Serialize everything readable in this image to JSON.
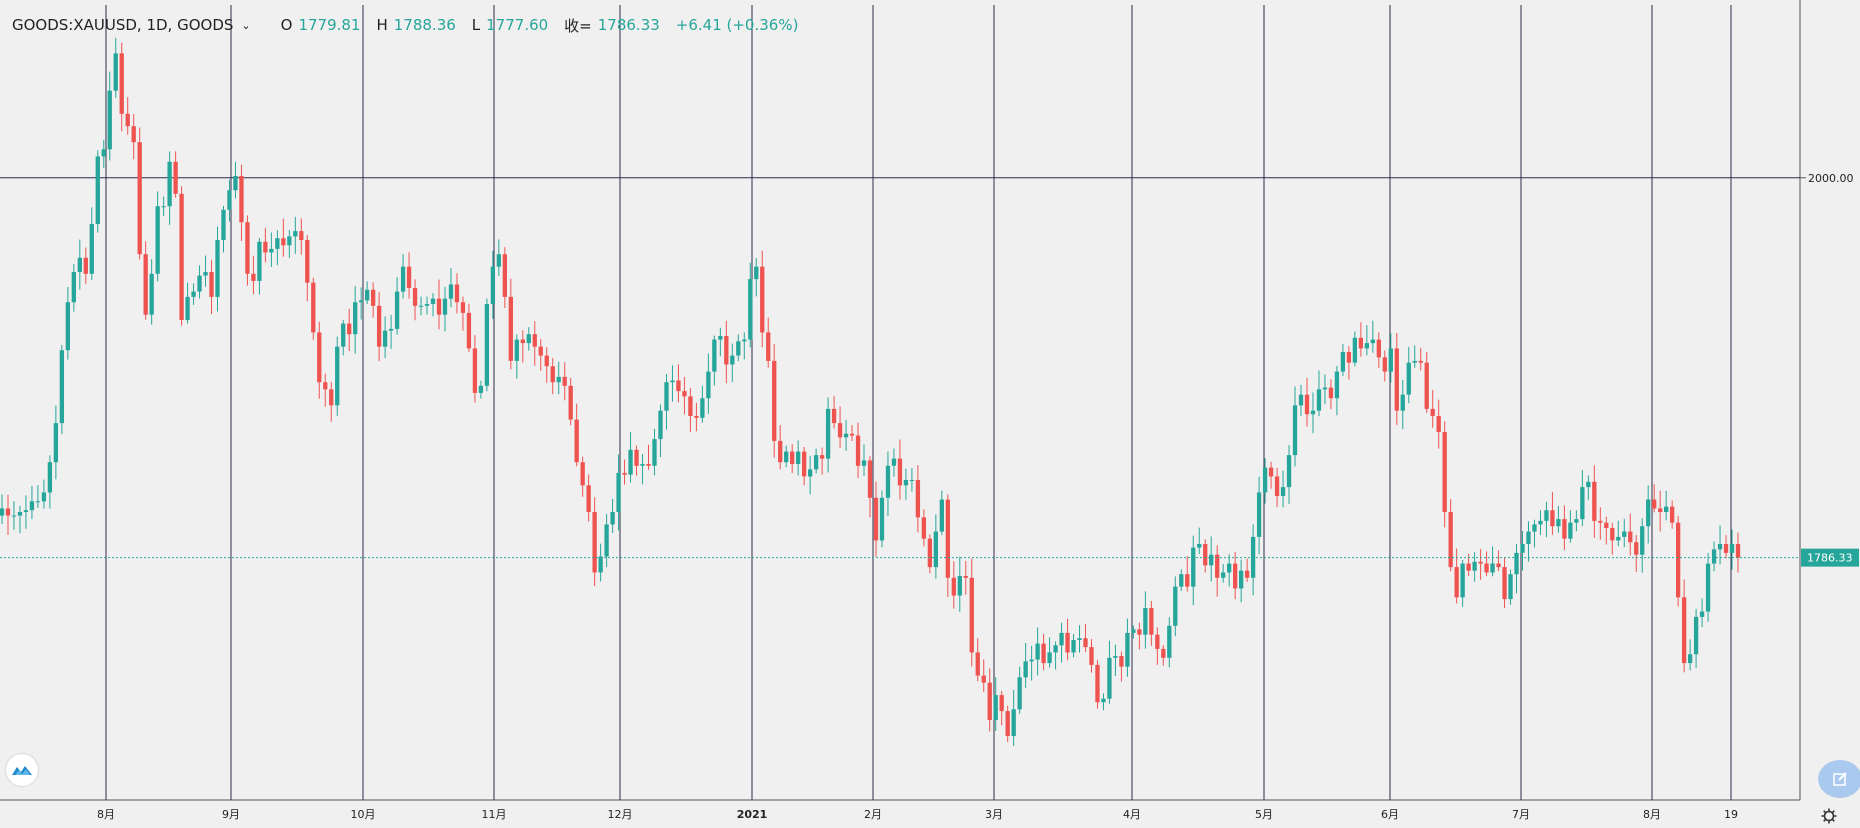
{
  "legend": {
    "symbol": "GOODS:XAUUSD, 1D, GOODS",
    "open_label": "O",
    "open": "1779.81",
    "high_label": "H",
    "high": "1788.36",
    "low_label": "L",
    "low": "1777.60",
    "close_label": "收=",
    "close": "1786.33",
    "change": "+6.41 (+0.36%)"
  },
  "price_axis": {
    "labels": [
      "2000.00"
    ],
    "last_price": "1786.33"
  },
  "time_axis": {
    "labels": [
      "8月",
      "9月",
      "10月",
      "11月",
      "12月",
      "2021",
      "2月",
      "3月",
      "4月",
      "5月",
      "6月",
      "7月",
      "8月",
      "19"
    ]
  },
  "colors": {
    "up": "#26a69a",
    "down": "#ef5350",
    "grid": "#2b2b4a",
    "background": "#f0f0f0",
    "price_tag": "#26a69a"
  },
  "icons": {
    "logo": "tradingview-logo-icon",
    "edit": "pencil-edit-icon",
    "settings": "gear-icon"
  },
  "chart_data": {
    "type": "candlestick",
    "symbol": "GOODS:XAUUSD",
    "interval": "1D",
    "ylim": [
      1650,
      2100
    ],
    "horizontal_grid": [
      2000
    ],
    "last_price": 1786.33,
    "x_ticks": [
      "8月",
      "9月",
      "10月",
      "11月",
      "12月",
      "2021",
      "2月",
      "3月",
      "4月",
      "5月",
      "6月",
      "7月",
      "8月",
      "19"
    ],
    "closes": [
      1814,
      1810,
      1810,
      1812,
      1813,
      1818,
      1818,
      1823,
      1840,
      1862,
      1903,
      1930,
      1947,
      1955,
      1946,
      1974,
      2012,
      2016,
      2049,
      2070,
      2036,
      2029,
      2020,
      1957,
      1923,
      1946,
      1984,
      1984,
      2009,
      1991,
      1920,
      1933,
      1936,
      1945,
      1947,
      1933,
      1965,
      1982,
      1993,
      2001,
      1975,
      1946,
      1942,
      1964,
      1958,
      1960,
      1966,
      1962,
      1967,
      1970,
      1965,
      1941,
      1913,
      1885,
      1881,
      1872,
      1905,
      1918,
      1912,
      1930,
      1931,
      1937,
      1928,
      1905,
      1914,
      1915,
      1936,
      1950,
      1938,
      1928,
      1928,
      1929,
      1932,
      1923,
      1932,
      1940,
      1930,
      1924,
      1904,
      1879,
      1883,
      1929,
      1950,
      1957,
      1933,
      1897,
      1909,
      1907,
      1912,
      1905,
      1900,
      1894,
      1885,
      1888,
      1883,
      1864,
      1840,
      1827,
      1812,
      1778,
      1787,
      1805,
      1812,
      1834,
      1833,
      1847,
      1838,
      1839,
      1838,
      1853,
      1869,
      1885,
      1886,
      1880,
      1877,
      1866,
      1865,
      1876,
      1891,
      1909,
      1911,
      1895,
      1900,
      1908,
      1909,
      1943,
      1950,
      1913,
      1897,
      1852,
      1840,
      1846,
      1839,
      1846,
      1832,
      1836,
      1844,
      1842,
      1870,
      1862,
      1854,
      1856,
      1855,
      1838,
      1841,
      1820,
      1796,
      1820,
      1838,
      1842,
      1827,
      1830,
      1830,
      1809,
      1797,
      1781,
      1801,
      1819,
      1775,
      1765,
      1776,
      1775,
      1733,
      1720,
      1716,
      1695,
      1709,
      1700,
      1686,
      1701,
      1719,
      1728,
      1729,
      1738,
      1727,
      1733,
      1737,
      1744,
      1733,
      1740,
      1741,
      1736,
      1726,
      1705,
      1707,
      1730,
      1731,
      1725,
      1744,
      1746,
      1743,
      1758,
      1743,
      1735,
      1730,
      1748,
      1770,
      1777,
      1770,
      1792,
      1794,
      1782,
      1788,
      1775,
      1778,
      1783,
      1769,
      1779,
      1775,
      1798,
      1823,
      1837,
      1832,
      1821,
      1826,
      1844,
      1872,
      1878,
      1867,
      1869,
      1881,
      1882,
      1876,
      1891,
      1902,
      1896,
      1910,
      1904,
      1907,
      1909,
      1899,
      1891,
      1904,
      1869,
      1878,
      1896,
      1897,
      1896,
      1870,
      1866,
      1857,
      1812,
      1781,
      1764,
      1783,
      1779,
      1784,
      1783,
      1778,
      1783,
      1781,
      1763,
      1777,
      1789,
      1794,
      1801,
      1805,
      1807,
      1813,
      1804,
      1808,
      1797,
      1806,
      1808,
      1826,
      1829,
      1807,
      1806,
      1803,
      1796,
      1798,
      1801,
      1795,
      1788,
      1804,
      1819,
      1814,
      1812,
      1815,
      1806,
      1764,
      1727,
      1732,
      1753,
      1756,
      1783,
      1791,
      1794,
      1789,
      1794,
      1786.33
    ]
  }
}
